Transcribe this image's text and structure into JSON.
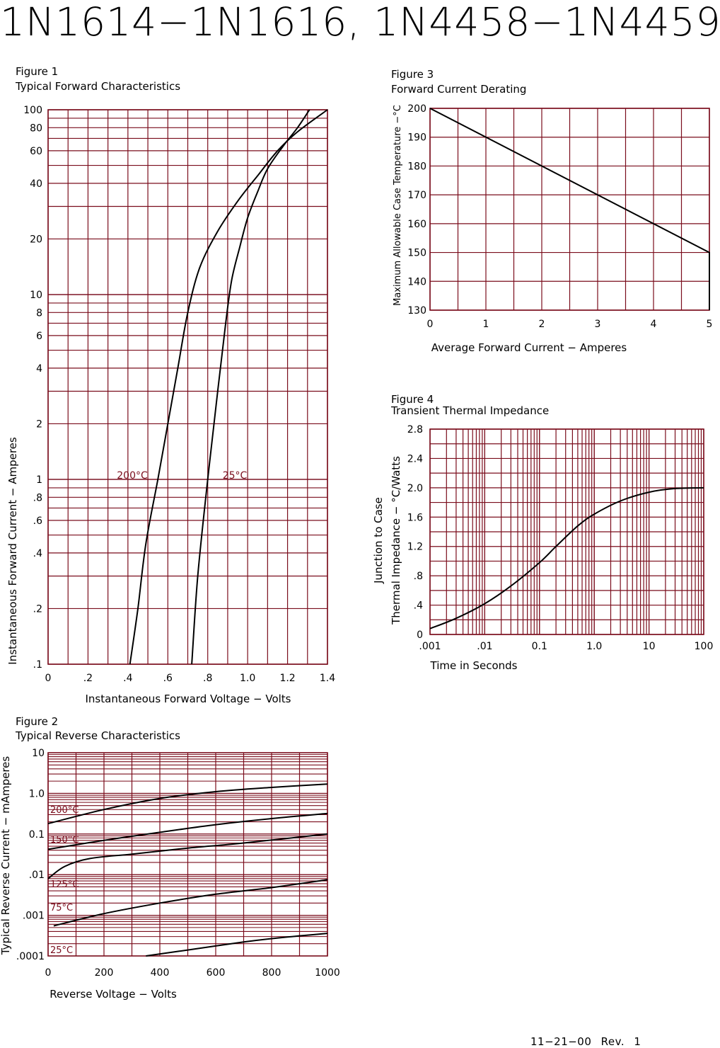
{
  "page": {
    "title": "1N1614−1N1616, 1N4458−1N4459",
    "revision": "11−21−00   Rev. 1"
  },
  "colors": {
    "grid": "#7a0d1c",
    "curve": "#000000",
    "text": "#000000"
  },
  "chart_data": [
    {
      "id": "fig1",
      "type": "line",
      "figure_label": "Figure 1",
      "title": "Typical Forward Characteristics",
      "xlabel": "Instantaneous Forward Voltage − Volts",
      "ylabel": "Instantaneous Forward Current − Amperes",
      "xlim": [
        0,
        1.4
      ],
      "ylim": [
        0.1,
        100
      ],
      "yscale": "log",
      "grid": true,
      "x_ticks": [
        0,
        0.2,
        0.4,
        0.6,
        0.8,
        1.0,
        1.2,
        1.4
      ],
      "x_tick_labels": [
        "0",
        ".2",
        ".4",
        ".6",
        ".8",
        "1.0",
        "1.2",
        "1.4"
      ],
      "y_ticks": [
        0.1,
        0.2,
        0.4,
        0.6,
        0.8,
        1,
        2,
        4,
        6,
        8,
        10,
        20,
        40,
        60,
        80,
        100
      ],
      "y_tick_labels": [
        ".1",
        ".2",
        ".4",
        ".6",
        ".8",
        "1",
        "2",
        "4",
        "6",
        "8",
        "10",
        "20",
        "40",
        "60",
        "80",
        "100"
      ],
      "series": [
        {
          "name": "200°C",
          "x": [
            0.41,
            0.45,
            0.49,
            0.55,
            0.6,
            0.65,
            0.7,
            0.76,
            0.85,
            0.95,
            1.05,
            1.15,
            1.25,
            1.4
          ],
          "y": [
            0.1,
            0.2,
            0.45,
            1.0,
            2.0,
            4.0,
            8.0,
            14,
            22,
            32,
            44,
            60,
            76,
            100
          ]
        },
        {
          "name": "25°C",
          "x": [
            0.72,
            0.75,
            0.8,
            0.85,
            0.89,
            0.92,
            0.96,
            1.0,
            1.05,
            1.1,
            1.18,
            1.25,
            1.31
          ],
          "y": [
            0.1,
            0.3,
            1.0,
            3.0,
            7.0,
            12,
            18,
            26,
            36,
            48,
            64,
            80,
            100
          ]
        }
      ],
      "annotations": [
        "200°C",
        "25°C"
      ]
    },
    {
      "id": "fig2",
      "type": "line",
      "figure_label": "Figure 2",
      "title": "Typical Reverse Characteristics",
      "xlabel": "Reverse Voltage − Volts",
      "ylabel": "Typical Reverse Current − mAmperes",
      "xlim": [
        0,
        1000
      ],
      "ylim": [
        0.0001,
        10
      ],
      "yscale": "log",
      "grid": true,
      "x_ticks": [
        0,
        200,
        400,
        600,
        800,
        1000
      ],
      "x_tick_labels": [
        "0",
        "200",
        "400",
        "600",
        "800",
        "1000"
      ],
      "y_ticks": [
        0.0001,
        0.001,
        0.01,
        0.1,
        1.0,
        10
      ],
      "y_tick_labels": [
        ".0001",
        ".001",
        ".01",
        "0.1",
        "1.0",
        "10"
      ],
      "series": [
        {
          "name": "200°C",
          "x": [
            0,
            200,
            400,
            600,
            800,
            1000
          ],
          "y": [
            0.18,
            0.4,
            0.75,
            1.1,
            1.4,
            1.7
          ]
        },
        {
          "name": "150°C",
          "x": [
            0,
            200,
            400,
            600,
            800,
            1000
          ],
          "y": [
            0.042,
            0.07,
            0.11,
            0.17,
            0.24,
            0.32
          ]
        },
        {
          "name": "125°C",
          "x": [
            0,
            60,
            150,
            300,
            500,
            700,
            1000
          ],
          "y": [
            0.008,
            0.016,
            0.025,
            0.032,
            0.045,
            0.06,
            0.1
          ]
        },
        {
          "name": "75°C",
          "x": [
            20,
            200,
            400,
            600,
            800,
            1000
          ],
          "y": [
            0.00055,
            0.0011,
            0.002,
            0.0033,
            0.0048,
            0.0075
          ]
        },
        {
          "name": "25°C",
          "x": [
            350,
            500,
            700,
            850,
            1000
          ],
          "y": [
            0.0001,
            0.00014,
            0.00022,
            0.00029,
            0.00036
          ]
        }
      ],
      "annotations": [
        "200°C",
        "150°C",
        "125°C",
        "75°C",
        "25°C"
      ]
    },
    {
      "id": "fig3",
      "type": "line",
      "figure_label": "Figure 3",
      "title": "Forward Current Derating",
      "xlabel": "Average Forward Current − Amperes",
      "ylabel": "Maximum Allowable Case Temperature −°C",
      "xlim": [
        0,
        5
      ],
      "ylim": [
        130,
        200
      ],
      "grid": true,
      "x_ticks": [
        0,
        1,
        2,
        3,
        4,
        5
      ],
      "x_tick_labels": [
        "0",
        "1",
        "2",
        "3",
        "4",
        "5"
      ],
      "y_ticks": [
        130,
        140,
        150,
        160,
        170,
        180,
        190,
        200
      ],
      "y_tick_labels": [
        "130",
        "140",
        "150",
        "160",
        "170",
        "180",
        "190",
        "200"
      ],
      "series": [
        {
          "x": [
            0,
            5,
            5
          ],
          "y": [
            200,
            150,
            130
          ]
        }
      ]
    },
    {
      "id": "fig4",
      "type": "line",
      "figure_label": "Figure 4",
      "title": "Transient Thermal Impedance",
      "xlabel": "Time in Seconds",
      "ylabel": "Junction to Case Thermal Impedance − °C/Watts",
      "ylabel_lines": [
        "Junction  to  Case",
        "Thermal  Impedance  −  °C/Watts"
      ],
      "xlim": [
        0.001,
        100
      ],
      "ylim": [
        0,
        2.8
      ],
      "xscale": "log",
      "grid": true,
      "x_ticks": [
        0.001,
        0.01,
        0.1,
        1.0,
        10,
        100
      ],
      "x_tick_labels": [
        ".001",
        ".01",
        "0.1",
        "1.0",
        "10",
        "100"
      ],
      "y_ticks": [
        0,
        0.4,
        0.8,
        1.2,
        1.6,
        2.0,
        2.4,
        2.8
      ],
      "y_tick_labels": [
        "0",
        ".4",
        ".8",
        "1.2",
        "1.6",
        "2.0",
        "2.4",
        "2.8"
      ],
      "series": [
        {
          "x": [
            0.001,
            0.003,
            0.01,
            0.03,
            0.1,
            0.2,
            0.5,
            1.0,
            3.0,
            10,
            30,
            100
          ],
          "y": [
            0.08,
            0.22,
            0.42,
            0.66,
            0.98,
            1.2,
            1.48,
            1.64,
            1.82,
            1.94,
            1.99,
            2.0
          ]
        }
      ]
    }
  ]
}
